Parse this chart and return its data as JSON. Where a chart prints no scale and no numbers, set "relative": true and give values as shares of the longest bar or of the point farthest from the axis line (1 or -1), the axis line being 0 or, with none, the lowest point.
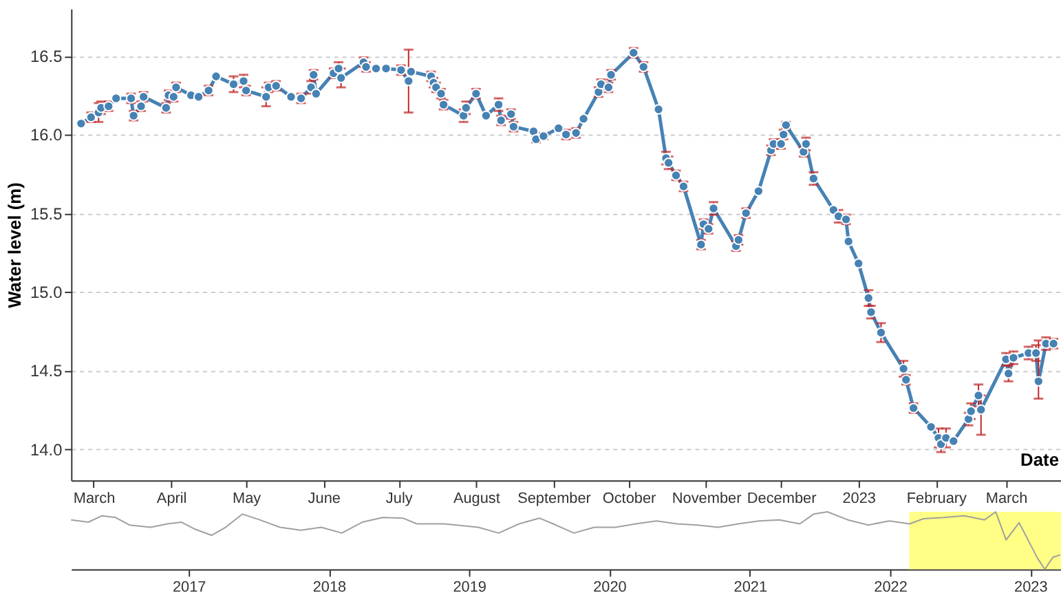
{
  "chart_data": [
    {
      "type": "line",
      "ylabel": "Water level (m)",
      "xlabel": "Date",
      "grid": "y",
      "marker": "circle",
      "line_style": "solid",
      "xlim": [
        "2022-02-20",
        "2023-03-23"
      ],
      "xticks": [
        {
          "value": "2022-03-01",
          "label": "March"
        },
        {
          "value": "2022-04-01",
          "label": "April"
        },
        {
          "value": "2022-05-01",
          "label": "May"
        },
        {
          "value": "2022-06-01",
          "label": "June"
        },
        {
          "value": "2022-07-01",
          "label": "July"
        },
        {
          "value": "2022-08-01",
          "label": "August"
        },
        {
          "value": "2022-09-01",
          "label": "September"
        },
        {
          "value": "2022-10-01",
          "label": "October"
        },
        {
          "value": "2022-11-01",
          "label": "November"
        },
        {
          "value": "2022-12-01",
          "label": "December"
        },
        {
          "value": "2023-01-01",
          "label": "2023"
        },
        {
          "value": "2023-02-01",
          "label": "February"
        },
        {
          "value": "2023-03-01",
          "label": "March"
        }
      ],
      "ylim": [
        13.8,
        16.8
      ],
      "yticks": [
        {
          "value": 14,
          "label": "14.0"
        },
        14.5,
        {
          "value": 15,
          "label": "15.0"
        },
        15.5,
        {
          "value": 16,
          "label": "16.0"
        },
        16.5
      ],
      "x": [
        "2022-02-24",
        "2022-02-28",
        "2022-03-03",
        "2022-03-04",
        "2022-03-07",
        "2022-03-10",
        "2022-03-16",
        "2022-03-17",
        "2022-03-20",
        "2022-03-21",
        "2022-03-30",
        "2022-03-31",
        "2022-04-02",
        "2022-04-03",
        "2022-04-09",
        "2022-04-12",
        "2022-04-16",
        "2022-04-19",
        "2022-04-26",
        "2022-04-30",
        "2022-05-01",
        "2022-05-09",
        "2022-05-10",
        "2022-05-13",
        "2022-05-19",
        "2022-05-23",
        "2022-05-27",
        "2022-05-28",
        "2022-05-29",
        "2022-06-05",
        "2022-06-07",
        "2022-06-08",
        "2022-06-17",
        "2022-06-18",
        "2022-06-22",
        "2022-06-26",
        "2022-07-02",
        "2022-07-05",
        "2022-07-06",
        "2022-07-14",
        "2022-07-15",
        "2022-07-16",
        "2022-07-18",
        "2022-07-19",
        "2022-07-27",
        "2022-07-28",
        "2022-08-01",
        "2022-08-05",
        "2022-08-10",
        "2022-08-11",
        "2022-08-15",
        "2022-08-16",
        "2022-08-24",
        "2022-08-25",
        "2022-08-28",
        "2022-09-03",
        "2022-09-06",
        "2022-09-10",
        "2022-09-13",
        "2022-09-19",
        "2022-09-20",
        "2022-09-23",
        "2022-09-24",
        "2022-10-03",
        "2022-10-07",
        "2022-10-13",
        "2022-10-16",
        "2022-10-17",
        "2022-10-20",
        "2022-10-23",
        "2022-10-30",
        "2022-10-31",
        "2022-11-02",
        "2022-11-04",
        "2022-11-13",
        "2022-11-14",
        "2022-11-17",
        "2022-11-22",
        "2022-11-27",
        "2022-11-28",
        "2022-12-01",
        "2022-12-02",
        "2022-12-03",
        "2022-12-10",
        "2022-12-11",
        "2022-12-14",
        "2022-12-22",
        "2022-12-24",
        "2022-12-27",
        "2022-12-28",
        "2023-01-01",
        "2023-01-05",
        "2023-01-06",
        "2023-01-10",
        "2023-01-19",
        "2023-01-20",
        "2023-01-23",
        "2023-01-30",
        "2023-02-02",
        "2023-02-03",
        "2023-02-05",
        "2023-02-08",
        "2023-02-14",
        "2023-02-15",
        "2023-02-18",
        "2023-02-19",
        "2023-03-01",
        "2023-03-02",
        "2023-03-04",
        "2023-03-10",
        "2023-03-13",
        "2023-03-14",
        "2023-03-17",
        "2023-03-20"
      ],
      "series": [
        {
          "color": "#4682b4",
          "values": [
            16.07,
            16.11,
            16.14,
            16.17,
            16.18,
            16.23,
            16.23,
            16.12,
            16.18,
            16.24,
            16.17,
            16.25,
            16.24,
            16.3,
            16.25,
            16.24,
            16.28,
            16.37,
            16.32,
            16.34,
            16.28,
            16.24,
            16.3,
            16.31,
            16.24,
            16.23,
            16.3,
            16.38,
            16.26,
            16.39,
            16.42,
            16.36,
            16.46,
            16.43,
            16.42,
            16.42,
            16.41,
            16.34,
            16.4,
            16.37,
            16.33,
            16.3,
            16.26,
            16.19,
            16.12,
            16.17,
            16.26,
            16.12,
            16.19,
            16.09,
            16.13,
            16.05,
            16.02,
            15.97,
            15.99,
            16.04,
            16.0,
            16.01,
            16.1,
            16.27,
            16.32,
            16.3,
            16.38,
            16.52,
            16.43,
            16.16,
            15.85,
            15.82,
            15.74,
            15.67,
            15.3,
            15.43,
            15.4,
            15.53,
            15.29,
            15.33,
            15.5,
            15.64,
            15.9,
            15.94,
            15.94,
            16.0,
            16.06,
            15.89,
            15.94,
            15.72,
            15.52,
            15.48,
            15.46,
            15.32,
            15.18,
            14.96,
            14.87,
            14.74,
            14.51,
            14.44,
            14.26,
            14.14,
            14.07,
            14.03,
            14.07,
            14.05,
            14.19,
            14.24,
            14.34,
            14.25,
            14.57,
            14.48,
            14.58,
            14.61,
            14.61,
            14.43,
            14.67,
            14.67
          ],
          "errors": [
            null,
            0.03,
            0.06,
            0.04,
            0.03,
            null,
            0.03,
            0.03,
            0.03,
            0.03,
            0.03,
            0.03,
            0.03,
            0.03,
            null,
            null,
            0.03,
            null,
            0.05,
            0.04,
            0.03,
            0.06,
            0.03,
            0.03,
            null,
            0.03,
            0.04,
            0.03,
            null,
            0.03,
            0.04,
            0.06,
            0.03,
            0.03,
            null,
            null,
            0.03,
            [
              16.14,
              16.54
            ],
            null,
            0.03,
            0.03,
            0.03,
            0.03,
            0.03,
            0.04,
            0.04,
            0.03,
            null,
            0.04,
            0.03,
            0.03,
            0.03,
            null,
            0.02,
            0.02,
            null,
            0.03,
            0.03,
            null,
            0.03,
            0.03,
            0.03,
            0.03,
            0.03,
            0.03,
            null,
            0.04,
            0.04,
            0.03,
            0.03,
            0.03,
            0.03,
            0.03,
            0.04,
            0.03,
            0.03,
            0.03,
            null,
            0.03,
            0.03,
            0.03,
            0.03,
            0.02,
            0.03,
            0.04,
            0.04,
            null,
            0.04,
            0.03,
            null,
            null,
            0.05,
            0.04,
            0.06,
            0.05,
            0.03,
            0.03,
            null,
            0.06,
            0.05,
            0.06,
            null,
            0.04,
            0.05,
            0.07,
            [
              14.09,
              14.34
            ],
            0.04,
            0.05,
            0.04,
            0.04,
            0.05,
            [
              14.32,
              14.69
            ],
            0.04,
            0.03
          ]
        }
      ]
    },
    {
      "type": "line",
      "relative": true,
      "xlim": [
        "2016-03-01",
        "2023-03-22"
      ],
      "xticks": [
        {
          "value": "2017-01-01",
          "label": "2017"
        },
        {
          "value": "2018-01-01",
          "label": "2018"
        },
        {
          "value": "2019-01-01",
          "label": "2019"
        },
        {
          "value": "2020-01-01",
          "label": "2020"
        },
        {
          "value": "2021-01-01",
          "label": "2021"
        },
        {
          "value": "2022-01-01",
          "label": "2022"
        },
        {
          "value": "2023-01-01",
          "label": "2023"
        }
      ],
      "bands": [
        {
          "axis": "x",
          "from": "2022-02-20",
          "to": "2023-03-22",
          "color": "#ffff66"
        }
      ],
      "x": [
        "2016-03-01",
        "2016-04-15",
        "2016-05-20",
        "2016-06-25",
        "2016-07-31",
        "2016-09-24",
        "2016-11-07",
        "2016-12-13",
        "2017-01-17",
        "2017-03-02",
        "2017-04-07",
        "2017-05-21",
        "2017-07-05",
        "2017-08-27",
        "2017-10-20",
        "2017-12-12",
        "2018-02-04",
        "2018-03-29",
        "2018-05-21",
        "2018-07-13",
        "2018-08-18",
        "2018-10-28",
        "2019-01-25",
        "2019-03-19",
        "2019-05-11",
        "2019-07-03",
        "2019-08-08",
        "2019-10-01",
        "2019-11-23",
        "2020-01-17",
        "2020-03-10",
        "2020-05-03",
        "2020-06-25",
        "2020-08-18",
        "2020-10-10",
        "2020-12-02",
        "2021-01-25",
        "2021-03-19",
        "2021-05-11",
        "2021-06-16",
        "2021-07-22",
        "2021-09-13",
        "2021-11-05",
        "2021-12-30",
        "2022-02-21",
        "2022-03-29",
        "2022-05-21",
        "2022-07-13",
        "2022-09-04",
        "2022-10-03",
        "2022-10-30",
        "2022-12-03",
        "2023-01-20",
        "2023-02-08",
        "2023-03-01",
        "2023-03-20"
      ],
      "series": [
        {
          "color": "#a0a0a0",
          "values": [
            0.86,
            0.82,
            0.93,
            0.9,
            0.77,
            0.73,
            0.79,
            0.82,
            0.7,
            0.59,
            0.73,
            0.96,
            0.86,
            0.73,
            0.68,
            0.73,
            0.63,
            0.82,
            0.9,
            0.89,
            0.79,
            0.79,
            0.73,
            0.63,
            0.79,
            0.89,
            0.79,
            0.63,
            0.73,
            0.73,
            0.79,
            0.84,
            0.79,
            0.77,
            0.73,
            0.79,
            0.84,
            0.86,
            0.79,
            0.96,
            1.0,
            0.86,
            0.77,
            0.84,
            0.79,
            0.88,
            0.9,
            0.93,
            0.86,
            1.0,
            0.51,
            0.81,
            0.19,
            0.0,
            0.21,
            0.25
          ]
        }
      ]
    }
  ]
}
